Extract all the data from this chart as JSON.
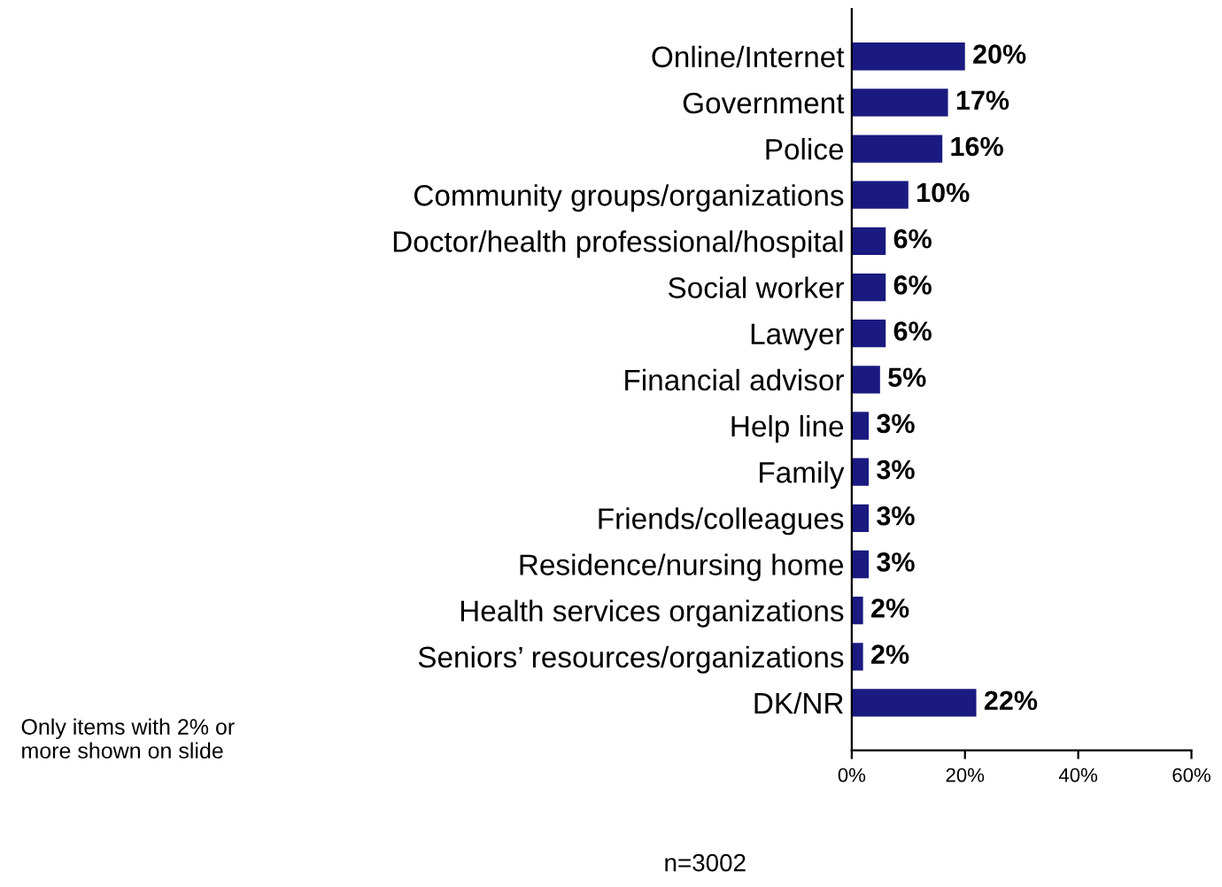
{
  "chart_data": {
    "type": "bar",
    "orientation": "horizontal",
    "categories": [
      "Online/Internet",
      "Government",
      "Police",
      "Community groups/organizations",
      "Doctor/health professional/hospital",
      "Social worker",
      "Lawyer",
      "Financial advisor",
      "Help line",
      "Family",
      "Friends/colleagues",
      "Residence/nursing home",
      "Health services organizations",
      "Seniors’ resources/organizations",
      "DK/NR"
    ],
    "values": [
      20,
      17,
      16,
      10,
      6,
      6,
      6,
      5,
      3,
      3,
      3,
      3,
      2,
      2,
      22
    ],
    "value_labels": [
      "20%",
      "17%",
      "16%",
      "10%",
      "6%",
      "6%",
      "6%",
      "5%",
      "3%",
      "3%",
      "3%",
      "3%",
      "2%",
      "2%",
      "22%"
    ],
    "color": "#1a1a80",
    "xlim": [
      0,
      60
    ],
    "xticks": [
      {
        "value": 0,
        "label": "0%"
      },
      {
        "value": 20,
        "label": "20%"
      },
      {
        "value": 40,
        "label": "40%"
      },
      {
        "value": 60,
        "label": "60%"
      }
    ],
    "grid": false,
    "annotations": [
      "Only items with 2% or\nmore shown on slide",
      "n=3002"
    ]
  }
}
